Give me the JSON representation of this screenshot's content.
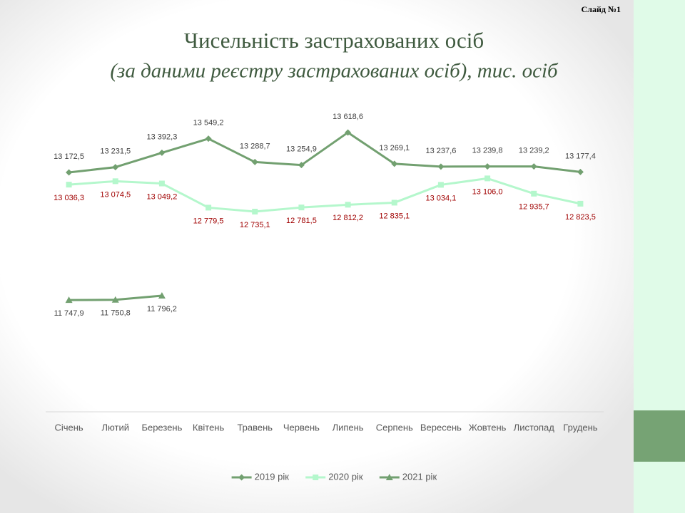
{
  "slide_number_label": "Слайд №1",
  "chart_data": {
    "type": "line",
    "title": "Чисельність застрахованих осіб",
    "subtitle": "(за даними реєстру застрахованих осіб), тис. осіб",
    "categories": [
      "Січень",
      "Лютий",
      "Березень",
      "Квітень",
      "Травень",
      "Червень",
      "Липень",
      "Серпень",
      "Вересень",
      "Жовтень",
      "Листопад",
      "Грудень"
    ],
    "ylim": [
      10500,
      14000
    ],
    "series": [
      {
        "name": "2019 рік",
        "color": "#72a070",
        "marker": "diamond",
        "label_color": "#404040",
        "label_side": "above",
        "values": [
          13172.5,
          13231.5,
          13392.3,
          13549.2,
          13288.7,
          13254.9,
          13618.6,
          13269.1,
          13237.6,
          13239.8,
          13239.2,
          13177.4
        ],
        "value_labels": [
          "13 172,5",
          "13 231,5",
          "13 392,3",
          "13 549,2",
          "13 288,7",
          "13 254,9",
          "13 618,6",
          "13 269,1",
          "13 237,6",
          "13 239,8",
          "13 239,2",
          "13 177,4"
        ]
      },
      {
        "name": "2020 рік",
        "color": "#b4f7cc",
        "marker": "square",
        "label_color": "#a00000",
        "label_side": "below",
        "values": [
          13036.3,
          13074.5,
          13049.2,
          12779.5,
          12735.1,
          12781.5,
          12812.2,
          12835.1,
          13034.1,
          13106.0,
          12935.7,
          12823.5
        ],
        "value_labels": [
          "13 036,3",
          "13 074,5",
          "13 049,2",
          "12 779,5",
          "12 735,1",
          "12 781,5",
          "12 812,2",
          "12 835,1",
          "13 034,1",
          "13 106,0",
          "12 935,7",
          "12 823,5"
        ]
      },
      {
        "name": "2021 рік",
        "color": "#72a070",
        "marker": "triangle",
        "label_color": "#404040",
        "label_side": "below",
        "values": [
          11747.9,
          11750.8,
          11796.2,
          null,
          null,
          null,
          null,
          null,
          null,
          null,
          null,
          null
        ],
        "value_labels": [
          "11 747,9",
          "11 750,8",
          "11 796,2",
          null,
          null,
          null,
          null,
          null,
          null,
          null,
          null,
          null
        ]
      }
    ]
  }
}
